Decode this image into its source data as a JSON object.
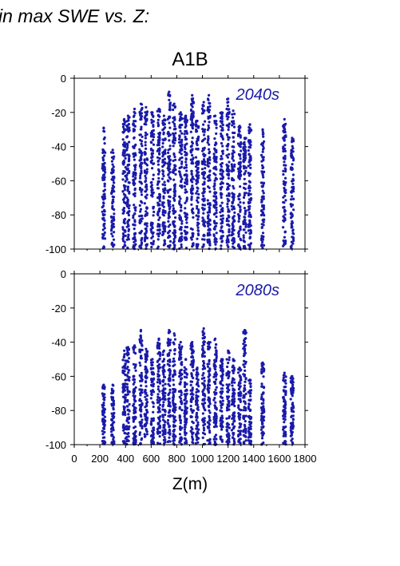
{
  "figure": {
    "header": "in max SWE vs. Z:",
    "title": "A1B",
    "xlabel": "Z(m)"
  },
  "colors": {
    "points": "#1a1aaa",
    "period_label": "#1a1aaa",
    "axes": "#000000"
  },
  "chart_data": [
    {
      "type": "scatter",
      "period_label": "2040s",
      "xlim": [
        0,
        1800
      ],
      "ylim": [
        -100,
        0
      ],
      "x_ticks": [
        0,
        200,
        400,
        600,
        800,
        1000,
        1200,
        1400,
        1600,
        1800
      ],
      "y_ticks": [
        0,
        -20,
        -40,
        -60,
        -80,
        -100
      ],
      "grid": false,
      "series": [
        {
          "values": "elevation columns at ~230, 300, 390-1250, 1300, 1370, 1470, 1640, 1710 m; most points between -100 and -25",
          "columns": [
            {
              "x": 230,
              "top": -29
            },
            {
              "x": 300,
              "top": -42
            },
            {
              "x": 390,
              "top": -24
            },
            {
              "x": 420,
              "top": -22
            },
            {
              "x": 470,
              "top": -18
            },
            {
              "x": 520,
              "top": -15
            },
            {
              "x": 560,
              "top": -17
            },
            {
              "x": 610,
              "top": -20
            },
            {
              "x": 660,
              "top": -18
            },
            {
              "x": 700,
              "top": -22
            },
            {
              "x": 740,
              "top": -8
            },
            {
              "x": 780,
              "top": -15
            },
            {
              "x": 830,
              "top": -20
            },
            {
              "x": 870,
              "top": -22
            },
            {
              "x": 920,
              "top": -10
            },
            {
              "x": 960,
              "top": -25
            },
            {
              "x": 1010,
              "top": -14
            },
            {
              "x": 1050,
              "top": -10
            },
            {
              "x": 1100,
              "top": -22
            },
            {
              "x": 1150,
              "top": -20
            },
            {
              "x": 1200,
              "top": -12
            },
            {
              "x": 1240,
              "top": -19
            },
            {
              "x": 1290,
              "top": -28
            },
            {
              "x": 1330,
              "top": -35
            },
            {
              "x": 1370,
              "top": -27
            },
            {
              "x": 1470,
              "top": -30
            },
            {
              "x": 1640,
              "top": -24
            },
            {
              "x": 1700,
              "top": -35
            }
          ]
        }
      ]
    },
    {
      "type": "scatter",
      "period_label": "2080s",
      "xlim": [
        0,
        1800
      ],
      "ylim": [
        -100,
        0
      ],
      "x_ticks": [
        0,
        200,
        400,
        600,
        800,
        1000,
        1200,
        1400,
        1600,
        1800
      ],
      "y_ticks": [
        0,
        -20,
        -40,
        -60,
        -80,
        -100
      ],
      "grid": false,
      "series": [
        {
          "values": "same elevation columns; most points between -100 and -40",
          "columns": [
            {
              "x": 230,
              "top": -65
            },
            {
              "x": 300,
              "top": -65
            },
            {
              "x": 390,
              "top": -45
            },
            {
              "x": 420,
              "top": -43
            },
            {
              "x": 470,
              "top": -42
            },
            {
              "x": 520,
              "top": -33
            },
            {
              "x": 560,
              "top": -44
            },
            {
              "x": 610,
              "top": -50
            },
            {
              "x": 660,
              "top": -38
            },
            {
              "x": 700,
              "top": -45
            },
            {
              "x": 740,
              "top": -33
            },
            {
              "x": 780,
              "top": -35
            },
            {
              "x": 830,
              "top": -40
            },
            {
              "x": 870,
              "top": -50
            },
            {
              "x": 920,
              "top": -40
            },
            {
              "x": 960,
              "top": -55
            },
            {
              "x": 1010,
              "top": -32
            },
            {
              "x": 1050,
              "top": -40
            },
            {
              "x": 1100,
              "top": -38
            },
            {
              "x": 1150,
              "top": -50
            },
            {
              "x": 1200,
              "top": -45
            },
            {
              "x": 1240,
              "top": -50
            },
            {
              "x": 1290,
              "top": -55
            },
            {
              "x": 1330,
              "top": -33
            },
            {
              "x": 1370,
              "top": -62
            },
            {
              "x": 1470,
              "top": -52
            },
            {
              "x": 1640,
              "top": -58
            },
            {
              "x": 1700,
              "top": -60
            }
          ]
        }
      ]
    }
  ]
}
